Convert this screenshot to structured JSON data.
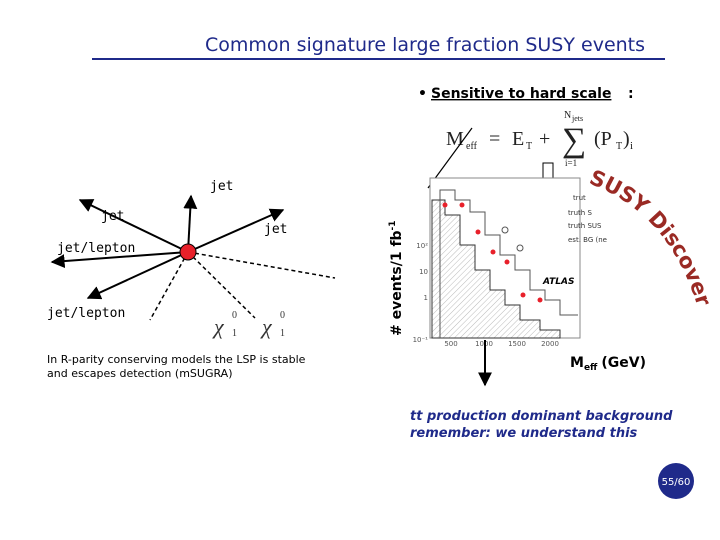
{
  "header": {
    "title": "Common signature large fraction SUSY events"
  },
  "bullet": {
    "marker": "•",
    "text": "Sensitive to hard scale",
    "suffix": ":"
  },
  "formula": {
    "m": "M",
    "m_sub": "eff",
    "equals": "=",
    "e": "E",
    "e_sub": "T",
    "plus": "+",
    "sum": "∑",
    "upper": "N",
    "upper_sub": "jets",
    "lower": "i=1",
    "p_open": "(P",
    "p_sub": "T",
    "p_close": ")",
    "index": "i"
  },
  "diagram": {
    "labels": [
      "jet",
      "jet",
      "jet",
      "jet/lepton",
      "jet/lepton"
    ],
    "particle": "χ",
    "superscript": "0",
    "subscript": "1"
  },
  "caption": [
    "In R-parity conserving models the LSP is stable",
    "and escapes detection (mSUGRA)"
  ],
  "plot": {
    "y_label": "# events/1 fb",
    "y_label_sup": "-1",
    "x_label": "M",
    "x_label_sub": "eff",
    "x_label_unit": "(GeV)",
    "x_ticks": [
      "500",
      "1000",
      "1500",
      "2000"
    ],
    "y_ticks": [
      "10²",
      "10",
      "1",
      "10⁻¹"
    ],
    "legend": [
      "trut",
      "truth S",
      "truth SUS",
      "est. BG (ne"
    ],
    "watermark": "ATLAS",
    "stamp": "SUSY Discovery"
  },
  "footer": {
    "lines": [
      "tt production dominant background",
      "remember: we understand this"
    ],
    "page": "55/60"
  }
}
